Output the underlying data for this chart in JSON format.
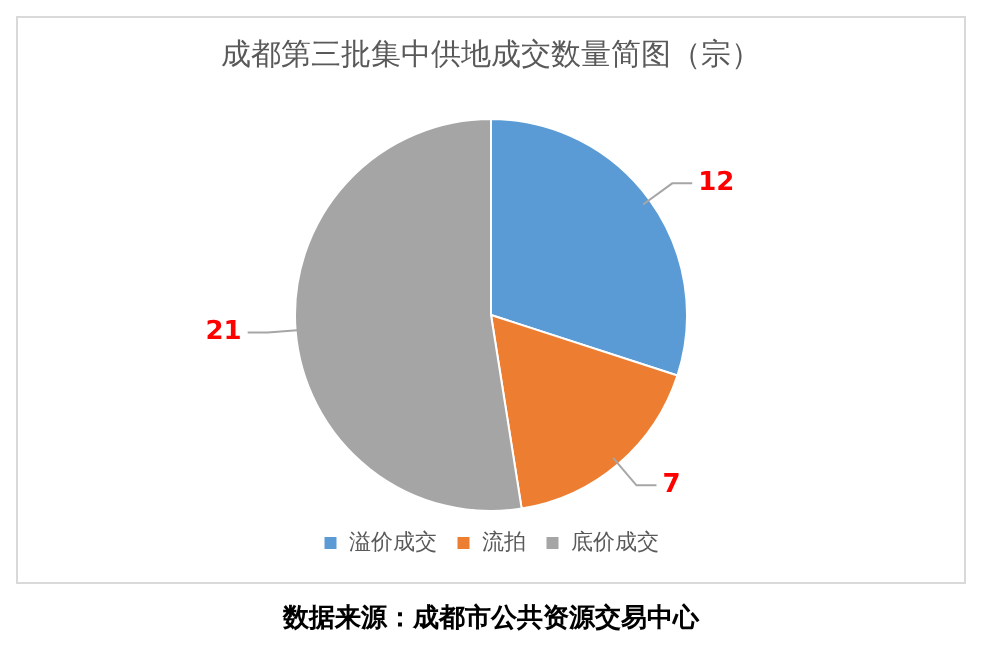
{
  "chart_data": {
    "type": "pie",
    "title": "成都第三批集中供地成交数量简图（宗）",
    "categories": [
      "溢价成交",
      "流拍",
      "底价成交"
    ],
    "values": [
      12,
      7,
      21
    ],
    "colors": [
      "#5b9bd5",
      "#ed7d31",
      "#a5a5a5"
    ],
    "data_labels": true,
    "legend": "bottom",
    "annotations": [
      "数据来源：成都市公共资源交易中心"
    ]
  }
}
